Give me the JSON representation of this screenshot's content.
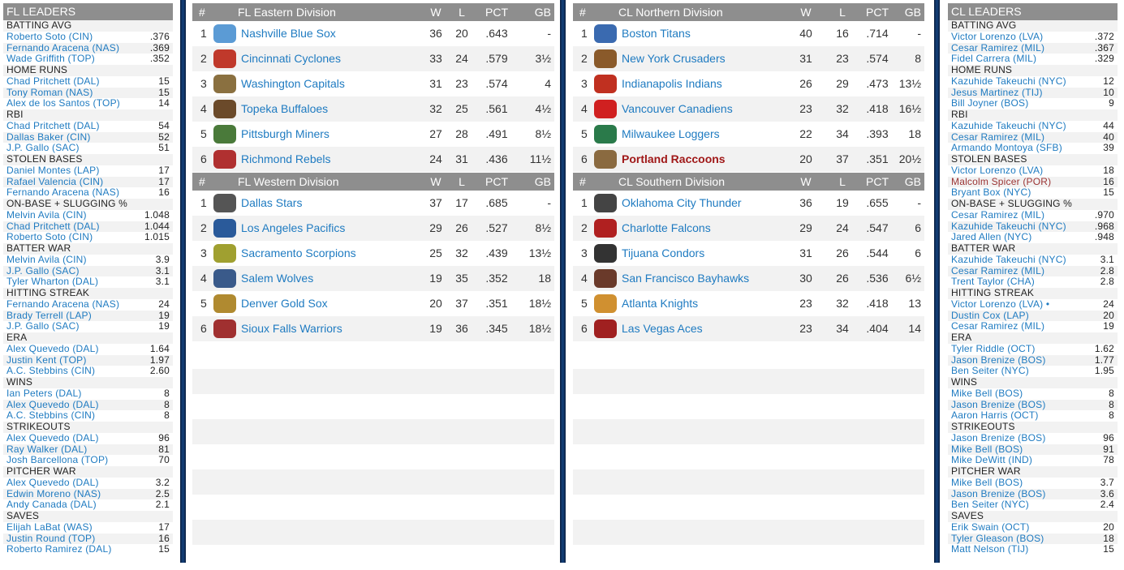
{
  "colors": {
    "header": "#8e8e8e",
    "link": "#1f7bc1",
    "highlight": "#a01818",
    "border": "#14427d"
  },
  "columns": {
    "rank": "#",
    "w": "W",
    "l": "L",
    "pct": "PCT",
    "gb": "GB"
  },
  "fl_leaders": {
    "title": "FL LEADERS",
    "categories": [
      {
        "name": "BATTING AVG",
        "players": [
          [
            "Roberto Soto (CIN)",
            ".376"
          ],
          [
            "Fernando Aracena (NAS)",
            ".369"
          ],
          [
            "Wade Griffith (TOP)",
            ".352"
          ]
        ]
      },
      {
        "name": "HOME RUNS",
        "players": [
          [
            "Chad Pritchett (DAL)",
            "15"
          ],
          [
            "Tony Roman (NAS)",
            "15"
          ],
          [
            "Alex de los Santos (TOP)",
            "14"
          ]
        ]
      },
      {
        "name": "RBI",
        "players": [
          [
            "Chad Pritchett (DAL)",
            "54"
          ],
          [
            "Dallas Baker (CIN)",
            "52"
          ],
          [
            "J.P. Gallo (SAC)",
            "51"
          ]
        ]
      },
      {
        "name": "STOLEN BASES",
        "players": [
          [
            "Daniel Montes (LAP)",
            "17"
          ],
          [
            "Rafael Valencia (CIN)",
            "17"
          ],
          [
            "Fernando Aracena (NAS)",
            "16"
          ]
        ]
      },
      {
        "name": "ON-BASE + SLUGGING %",
        "players": [
          [
            "Melvin Avila (CIN)",
            "1.048"
          ],
          [
            "Chad Pritchett (DAL)",
            "1.044"
          ],
          [
            "Roberto Soto (CIN)",
            "1.015"
          ]
        ]
      },
      {
        "name": "BATTER WAR",
        "players": [
          [
            "Melvin Avila (CIN)",
            "3.9"
          ],
          [
            "J.P. Gallo (SAC)",
            "3.1"
          ],
          [
            "Tyler Wharton (DAL)",
            "3.1"
          ]
        ]
      },
      {
        "name": "HITTING STREAK",
        "players": [
          [
            "Fernando Aracena (NAS)",
            "24"
          ],
          [
            "Brady Terrell (LAP)",
            "19"
          ],
          [
            "J.P. Gallo (SAC)",
            "19"
          ]
        ]
      },
      {
        "name": "ERA",
        "players": [
          [
            "Alex Quevedo (DAL)",
            "1.64"
          ],
          [
            "Justin Kent (TOP)",
            "1.97"
          ],
          [
            "A.C. Stebbins (CIN)",
            "2.60"
          ]
        ]
      },
      {
        "name": "WINS",
        "players": [
          [
            "Ian Peters (DAL)",
            "8"
          ],
          [
            "Alex Quevedo (DAL)",
            "8"
          ],
          [
            "A.C. Stebbins (CIN)",
            "8"
          ]
        ]
      },
      {
        "name": "STRIKEOUTS",
        "players": [
          [
            "Alex Quevedo (DAL)",
            "96"
          ],
          [
            "Ray Walker (DAL)",
            "81"
          ],
          [
            "Josh Barcellona (TOP)",
            "70"
          ]
        ]
      },
      {
        "name": "PITCHER WAR",
        "players": [
          [
            "Alex Quevedo (DAL)",
            "3.2"
          ],
          [
            "Edwin Moreno (NAS)",
            "2.5"
          ],
          [
            "Andy Canada (DAL)",
            "2.1"
          ]
        ]
      },
      {
        "name": "SAVES",
        "players": [
          [
            "Elijah LaBat (WAS)",
            "17"
          ],
          [
            "Justin Round (TOP)",
            "16"
          ],
          [
            "Roberto Ramirez (DAL)",
            "15"
          ]
        ]
      }
    ]
  },
  "cl_leaders": {
    "title": "CL LEADERS",
    "categories": [
      {
        "name": "BATTING AVG",
        "players": [
          [
            "Victor Lorenzo (LVA)",
            ".372"
          ],
          [
            "Cesar Ramirez (MIL)",
            ".367"
          ],
          [
            "Fidel Carrera (MIL)",
            ".329"
          ]
        ]
      },
      {
        "name": "HOME RUNS",
        "players": [
          [
            "Kazuhide Takeuchi (NYC)",
            "12"
          ],
          [
            "Jesus Martinez (TIJ)",
            "10"
          ],
          [
            "Bill Joyner (BOS)",
            "9"
          ]
        ]
      },
      {
        "name": "RBI",
        "players": [
          [
            "Kazuhide Takeuchi (NYC)",
            "44"
          ],
          [
            "Cesar Ramirez (MIL)",
            "40"
          ],
          [
            "Armando Montoya (SFB)",
            "39"
          ]
        ]
      },
      {
        "name": "STOLEN BASES",
        "players": [
          [
            "Victor Lorenzo (LVA)",
            "18"
          ],
          [
            "Malcolm Spicer (POR)",
            "16"
          ],
          [
            "Bryant Box (NYC)",
            "15"
          ]
        ]
      },
      {
        "name": "ON-BASE + SLUGGING %",
        "players": [
          [
            "Cesar Ramirez (MIL)",
            ".970"
          ],
          [
            "Kazuhide Takeuchi (NYC)",
            ".968"
          ],
          [
            "Jared Allen (NYC)",
            ".948"
          ]
        ]
      },
      {
        "name": "BATTER WAR",
        "players": [
          [
            "Kazuhide Takeuchi (NYC)",
            "3.1"
          ],
          [
            "Cesar Ramirez (MIL)",
            "2.8"
          ],
          [
            "Trent Taylor (CHA)",
            "2.8"
          ]
        ]
      },
      {
        "name": "HITTING STREAK",
        "players": [
          [
            "Victor Lorenzo (LVA) •",
            "24"
          ],
          [
            "Dustin Cox (LAP)",
            "20"
          ],
          [
            "Cesar Ramirez (MIL)",
            "19"
          ]
        ]
      },
      {
        "name": "ERA",
        "players": [
          [
            "Tyler Riddle (OCT)",
            "1.62"
          ],
          [
            "Jason Brenize (BOS)",
            "1.77"
          ],
          [
            "Ben Seiter (NYC)",
            "1.95"
          ]
        ]
      },
      {
        "name": "WINS",
        "players": [
          [
            "Mike Bell (BOS)",
            "8"
          ],
          [
            "Jason Brenize (BOS)",
            "8"
          ],
          [
            "Aaron Harris (OCT)",
            "8"
          ]
        ]
      },
      {
        "name": "STRIKEOUTS",
        "players": [
          [
            "Jason Brenize (BOS)",
            "96"
          ],
          [
            "Mike Bell (BOS)",
            "91"
          ],
          [
            "Mike DeWitt (IND)",
            "78"
          ]
        ]
      },
      {
        "name": "PITCHER WAR",
        "players": [
          [
            "Mike Bell (BOS)",
            "3.7"
          ],
          [
            "Jason Brenize (BOS)",
            "3.6"
          ],
          [
            "Ben Seiter (NYC)",
            "2.4"
          ]
        ]
      },
      {
        "name": "SAVES",
        "players": [
          [
            "Erik Swain (OCT)",
            "20"
          ],
          [
            "Tyler Gleason (BOS)",
            "18"
          ],
          [
            "Matt Nelson (TIJ)",
            "15"
          ]
        ]
      }
    ]
  },
  "divisions": [
    {
      "name": "FL Eastern Division",
      "teams": [
        {
          "rank": "1",
          "name": "Nashville Blue Sox",
          "w": "36",
          "l": "20",
          "pct": ".643",
          "gb": "-",
          "logo": "#5b9bd5"
        },
        {
          "rank": "2",
          "name": "Cincinnati Cyclones",
          "w": "33",
          "l": "24",
          "pct": ".579",
          "gb": "3½",
          "logo": "#c0392b"
        },
        {
          "rank": "3",
          "name": "Washington Capitals",
          "w": "31",
          "l": "23",
          "pct": ".574",
          "gb": "4",
          "logo": "#8a7040"
        },
        {
          "rank": "4",
          "name": "Topeka Buffaloes",
          "w": "32",
          "l": "25",
          "pct": ".561",
          "gb": "4½",
          "logo": "#6b4a2a"
        },
        {
          "rank": "5",
          "name": "Pittsburgh Miners",
          "w": "27",
          "l": "28",
          "pct": ".491",
          "gb": "8½",
          "logo": "#4a7a3a"
        },
        {
          "rank": "6",
          "name": "Richmond Rebels",
          "w": "24",
          "l": "31",
          "pct": ".436",
          "gb": "11½",
          "logo": "#b03030"
        }
      ]
    },
    {
      "name": "FL Western Division",
      "teams": [
        {
          "rank": "1",
          "name": "Dallas Stars",
          "w": "37",
          "l": "17",
          "pct": ".685",
          "gb": "-",
          "logo": "#555555"
        },
        {
          "rank": "2",
          "name": "Los Angeles Pacifics",
          "w": "29",
          "l": "26",
          "pct": ".527",
          "gb": "8½",
          "logo": "#2a5a9a"
        },
        {
          "rank": "3",
          "name": "Sacramento Scorpions",
          "w": "25",
          "l": "32",
          "pct": ".439",
          "gb": "13½",
          "logo": "#a0a030"
        },
        {
          "rank": "4",
          "name": "Salem Wolves",
          "w": "19",
          "l": "35",
          "pct": ".352",
          "gb": "18",
          "logo": "#3a5a8a"
        },
        {
          "rank": "5",
          "name": "Denver Gold Sox",
          "w": "20",
          "l": "37",
          "pct": ".351",
          "gb": "18½",
          "logo": "#b08a30"
        },
        {
          "rank": "6",
          "name": "Sioux Falls Warriors",
          "w": "19",
          "l": "36",
          "pct": ".345",
          "gb": "18½",
          "logo": "#a03030"
        }
      ]
    },
    {
      "name": "CL Northern Division",
      "teams": [
        {
          "rank": "1",
          "name": "Boston Titans",
          "w": "40",
          "l": "16",
          "pct": ".714",
          "gb": "-",
          "logo": "#3a6ab0"
        },
        {
          "rank": "2",
          "name": "New York Crusaders",
          "w": "31",
          "l": "23",
          "pct": ".574",
          "gb": "8",
          "logo": "#8a5a2a"
        },
        {
          "rank": "3",
          "name": "Indianapolis Indians",
          "w": "26",
          "l": "29",
          "pct": ".473",
          "gb": "13½",
          "logo": "#c03020"
        },
        {
          "rank": "4",
          "name": "Vancouver Canadiens",
          "w": "23",
          "l": "32",
          "pct": ".418",
          "gb": "16½",
          "logo": "#d02020"
        },
        {
          "rank": "5",
          "name": "Milwaukee Loggers",
          "w": "22",
          "l": "34",
          "pct": ".393",
          "gb": "18",
          "logo": "#2a7a4a"
        },
        {
          "rank": "6",
          "name": "Portland Raccoons",
          "w": "20",
          "l": "37",
          "pct": ".351",
          "gb": "20½",
          "logo": "#8a6a40",
          "highlight": true
        }
      ]
    },
    {
      "name": "CL Southern Division",
      "teams": [
        {
          "rank": "1",
          "name": "Oklahoma City Thunder",
          "w": "36",
          "l": "19",
          "pct": ".655",
          "gb": "-",
          "logo": "#444444"
        },
        {
          "rank": "2",
          "name": "Charlotte Falcons",
          "w": "29",
          "l": "24",
          "pct": ".547",
          "gb": "6",
          "logo": "#b02020"
        },
        {
          "rank": "3",
          "name": "Tijuana Condors",
          "w": "31",
          "l": "26",
          "pct": ".544",
          "gb": "6",
          "logo": "#333333"
        },
        {
          "rank": "4",
          "name": "San Francisco Bayhawks",
          "w": "30",
          "l": "26",
          "pct": ".536",
          "gb": "6½",
          "logo": "#6a3a2a"
        },
        {
          "rank": "5",
          "name": "Atlanta Knights",
          "w": "23",
          "l": "32",
          "pct": ".418",
          "gb": "13",
          "logo": "#d09030"
        },
        {
          "rank": "6",
          "name": "Las Vegas Aces",
          "w": "23",
          "l": "34",
          "pct": ".404",
          "gb": "14",
          "logo": "#a02020"
        }
      ]
    }
  ]
}
